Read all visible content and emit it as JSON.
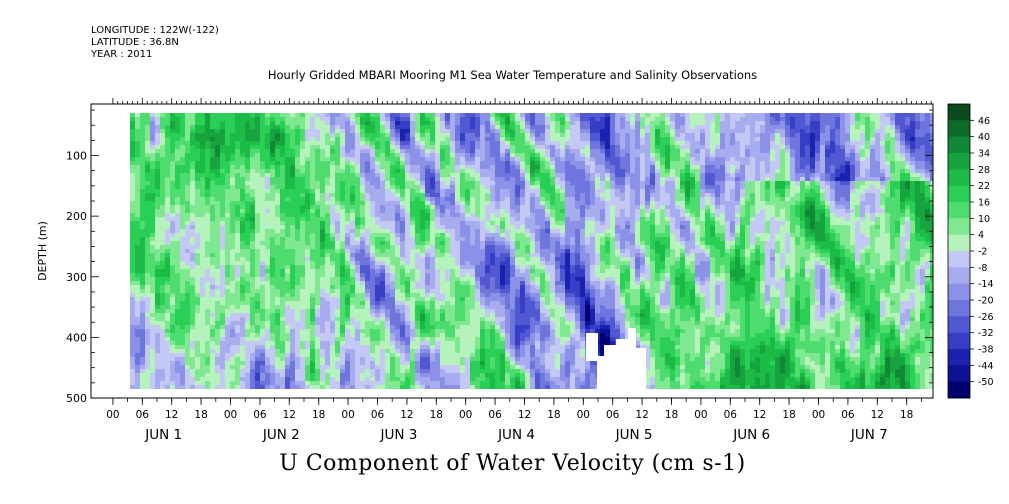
{
  "header": {
    "longitude": "LONGITUDE : 122W(-122)",
    "latitude": "LATITUDE : 36.8N",
    "year": "YEAR : 2011"
  },
  "title": "Hourly Gridded MBARI Mooring M1 Sea Water Temperature and Salinity Observations",
  "chart_data": {
    "type": "heatmap",
    "title": "Hourly Gridded MBARI Mooring M1 Sea Water Temperature and Salinity Observations",
    "variable": "U Component of Water Velocity (cm s-1)",
    "xlabel": "",
    "ylabel": "DEPTH (m)",
    "y_range": [
      0,
      500
    ],
    "y_reversed": true,
    "y_ticks": [
      "100",
      "200",
      "300",
      "400",
      "500"
    ],
    "x_range_hours": [
      0,
      167
    ],
    "x_tick_labels": [
      "00",
      "06",
      "12",
      "18",
      "00",
      "06",
      "12",
      "18",
      "00",
      "06",
      "12",
      "18",
      "00",
      "06",
      "12",
      "18",
      "00",
      "06",
      "12",
      "18",
      "00",
      "06",
      "12",
      "18",
      "00",
      "06",
      "12",
      "18"
    ],
    "day_labels": [
      "JUN  1",
      "JUN  2",
      "JUN  3",
      "JUN  4",
      "JUN  5",
      "JUN  6",
      "JUN  7"
    ],
    "colorbar_levels": [
      "46",
      "40",
      "34",
      "28",
      "22",
      "16",
      "10",
      "4",
      "-2",
      "-8",
      "-14",
      "-20",
      "-26",
      "-32",
      "-38",
      "-44",
      "-50"
    ],
    "colorbar_range": [
      -50,
      52
    ],
    "colorbar_colors": [
      "#0a4a1e",
      "#0e6a2a",
      "#118835",
      "#17a43f",
      "#1cbb45",
      "#2ad056",
      "#4ddc6d",
      "#7fe890",
      "#b6f2bb",
      "#c4c8f4",
      "#a6acee",
      "#8a91e6",
      "#6e76dd",
      "#5159d2",
      "#353ec4",
      "#1c22b0",
      "#0c1196",
      "#00006e"
    ],
    "grid": false
  }
}
